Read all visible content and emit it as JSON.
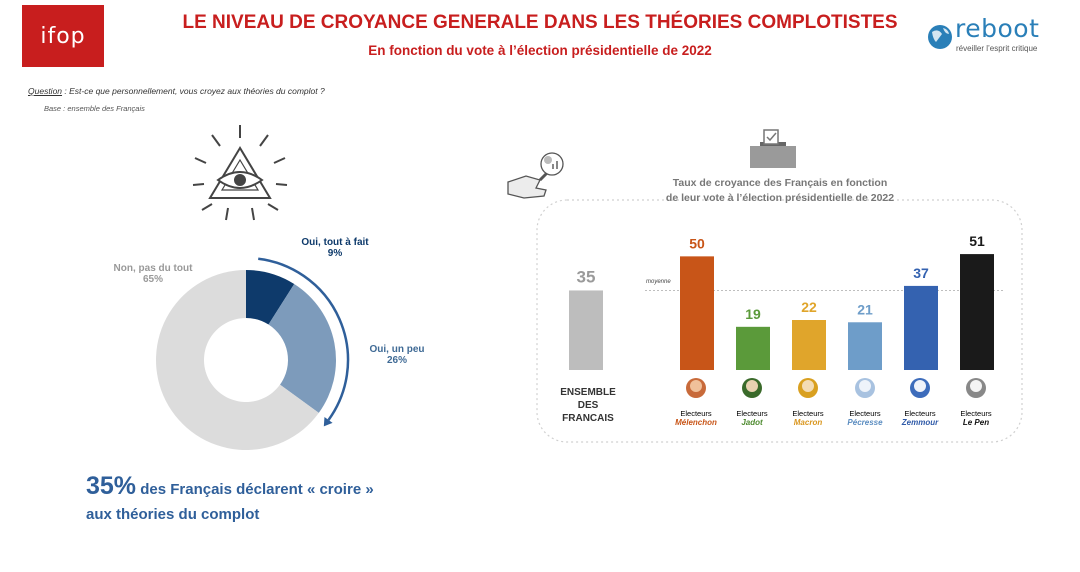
{
  "header": {
    "logo_left": "ifop",
    "title": "LE NIVEAU DE CROYANCE GENERALE DANS LES THÉORIES COMPLOTISTES",
    "subtitle": "En fonction du vote à l’élection présidentielle de 2022",
    "logo_right_name": "reboot",
    "logo_right_tagline": "réveiller l’esprit critique"
  },
  "question": {
    "prefix": "Question",
    "text": " :  Est-ce que personnellement, vous croyez aux théories du complot ?",
    "base": "Base : ensemble des Français"
  },
  "colors": {
    "brand_red": "#c81e1e",
    "dark_blue": "#0e3a6b",
    "mid_blue": "#7d9bbb",
    "light_gray": "#dcdcdc",
    "headline_blue": "#2f5f9a"
  },
  "headline": {
    "big": "35%",
    "rest": " des Français déclarent « croire »",
    "line2": "aux théories du complot"
  },
  "chart_data": [
    {
      "type": "pie",
      "subtype": "donut",
      "title": "",
      "slices": [
        {
          "label": "Oui, tout à fait",
          "value": 9,
          "display": "9%",
          "color": "#0e3a6b"
        },
        {
          "label": "Oui, un peu",
          "value": 26,
          "display": "26%",
          "color": "#7d9bbb"
        },
        {
          "label": "Non, pas du tout",
          "value": 65,
          "display": "65%",
          "color": "#dcdcdc"
        }
      ]
    },
    {
      "type": "bar",
      "title": "Taux de croyance des Français en fonction de leur vote à l’élection présidentielle de 2022",
      "title_line1": "Taux de croyance des Français en fonction",
      "title_line2": "de leur vote à l’élection présidentielle de 2022",
      "reference_line_label": "moyenne",
      "reference_value": 35,
      "ylim": [
        0,
        55
      ],
      "reference_bar": {
        "label_lines": [
          "ENSEMBLE",
          "DES",
          "FRANCAIS"
        ],
        "value": 35,
        "display": "35",
        "color": "#bdbdbd"
      },
      "categories": [
        {
          "prefix": "Electeurs",
          "name": "Mélenchon",
          "value": 50,
          "display": "50",
          "color": "#c85518"
        },
        {
          "prefix": "Electeurs",
          "name": "Jadot",
          "value": 19,
          "display": "19",
          "color": "#5b9a3a"
        },
        {
          "prefix": "Electeurs",
          "name": "Macron",
          "value": 22,
          "display": "22",
          "color": "#e0a52b"
        },
        {
          "prefix": "Electeurs",
          "name": "Pécresse",
          "value": 21,
          "display": "21",
          "color": "#6e9dc9"
        },
        {
          "prefix": "Electeurs",
          "name": "Zemmour",
          "value": 37,
          "display": "37",
          "color": "#3462b0"
        },
        {
          "prefix": "Electeurs",
          "name": "Le Pen",
          "value": 51,
          "display": "51",
          "color": "#1a1a1a"
        }
      ]
    }
  ]
}
